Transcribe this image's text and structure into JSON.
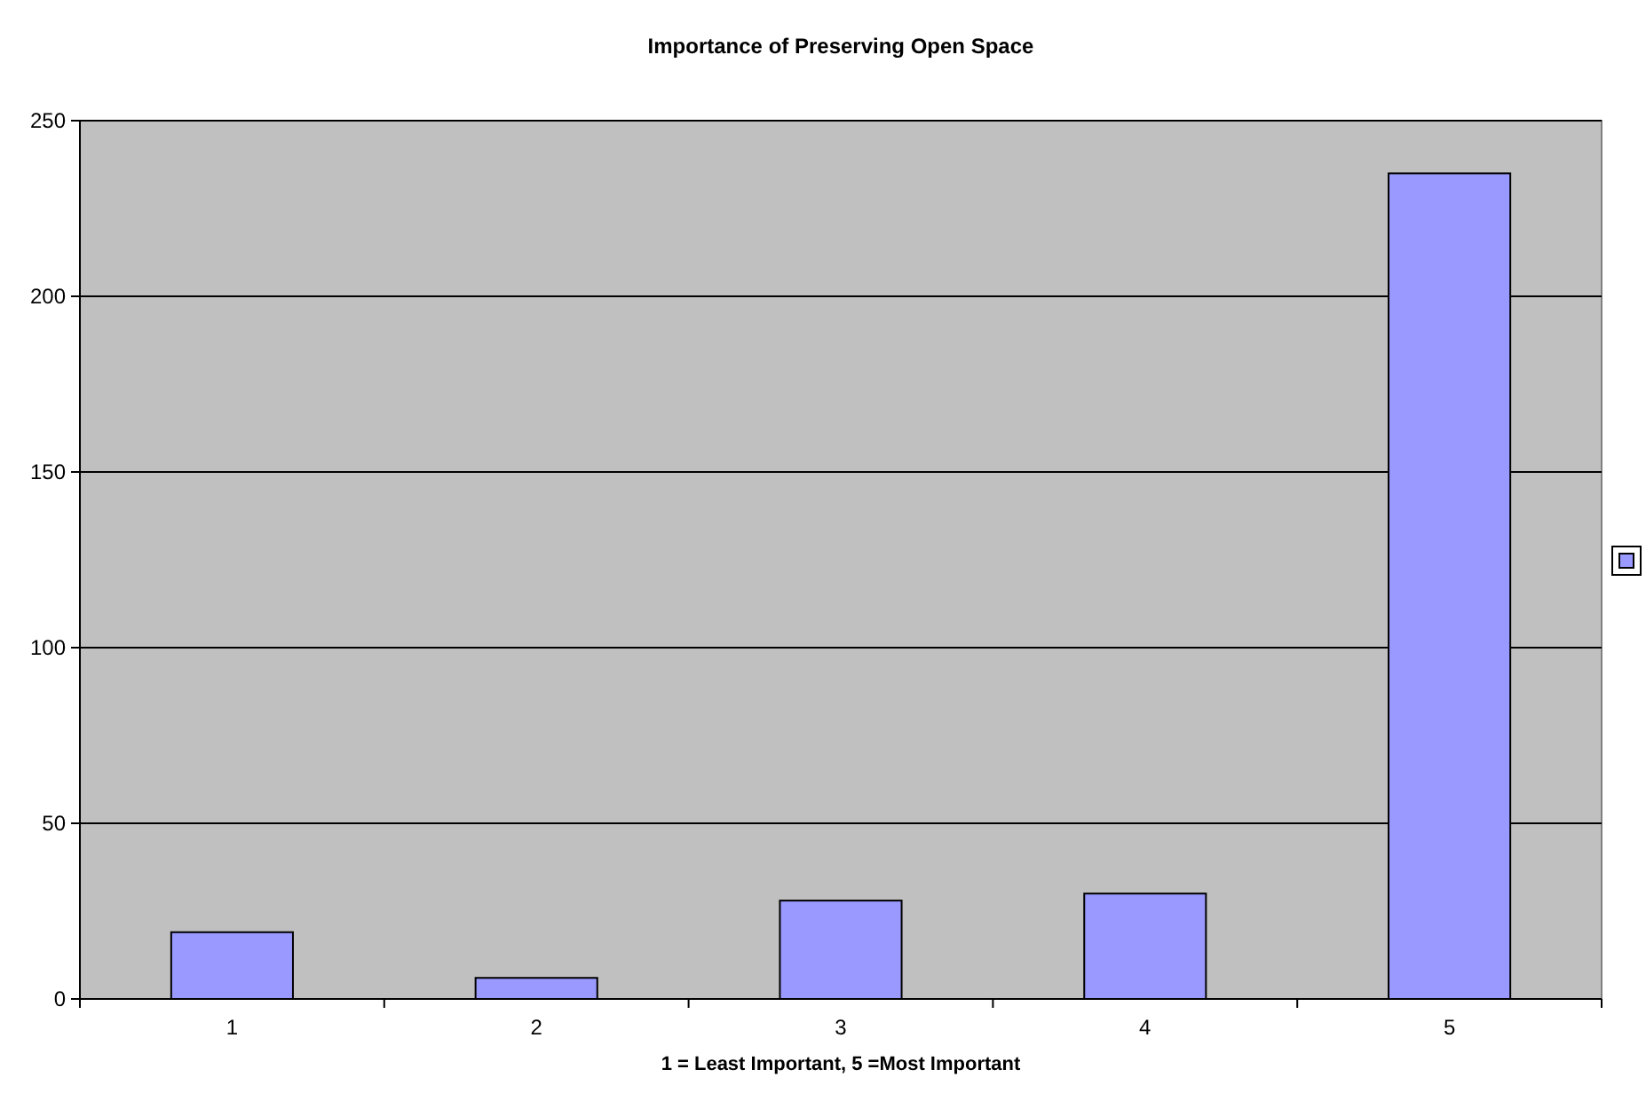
{
  "chart_data": {
    "type": "bar",
    "title": "Importance of Preserving Open Space",
    "xlabel": "1 = Least Important, 5 =Most Important",
    "categories": [
      "1",
      "2",
      "3",
      "4",
      "5"
    ],
    "series": [
      {
        "color": "#9999ff",
        "values": [
          19,
          6,
          28,
          30,
          235
        ]
      }
    ],
    "ylim": [
      0,
      250
    ],
    "yticks": [
      0,
      50,
      100,
      150,
      200,
      250
    ],
    "grid": "y"
  }
}
